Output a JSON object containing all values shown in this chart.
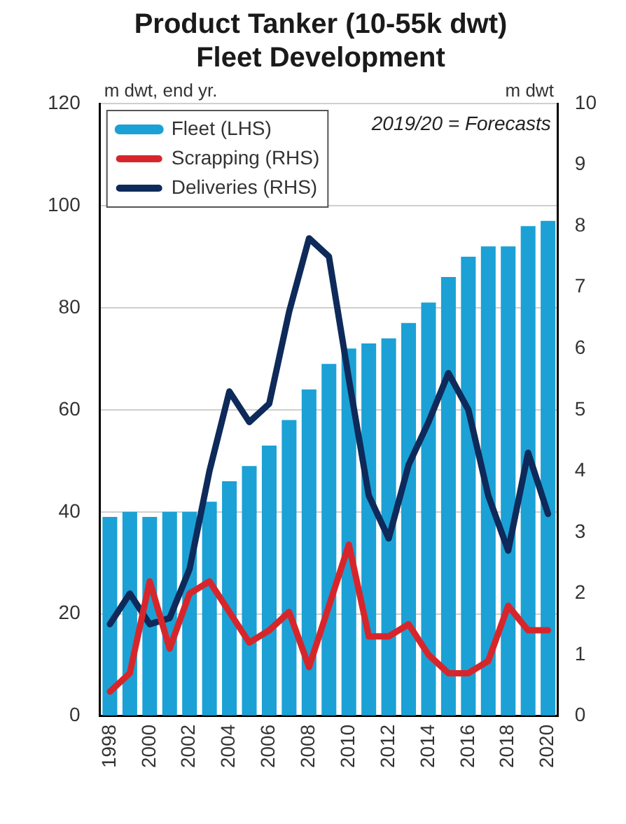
{
  "chart_data": {
    "type": "bar",
    "title": "Product Tanker (10-55k dwt)\nFleet Development",
    "ylabel": "m dwt, end yr.",
    "y2label": "m dwt",
    "annotations": [
      "2019/20 = Forecasts"
    ],
    "categories": [
      "1998",
      null,
      "2000",
      null,
      "2002",
      null,
      "2004",
      null,
      "2006",
      null,
      "2008",
      null,
      "2010",
      null,
      "2012",
      null,
      "2014",
      null,
      "2016",
      null,
      "2018",
      null,
      "2020"
    ],
    "series": [
      {
        "name": "Fleet (LHS)",
        "color": "#1ba1d5",
        "values": [
          39,
          40,
          39,
          40,
          40,
          42,
          46,
          49,
          53,
          58,
          64,
          69,
          72,
          73,
          74,
          77,
          81,
          86,
          90,
          92,
          92,
          96,
          97
        ]
      },
      {
        "name": "Scrapping (RHS)",
        "type": "line",
        "axis": "y2",
        "color": "#d7262b",
        "values": [
          0.4,
          0.7,
          2.2,
          1.1,
          2.0,
          2.2,
          1.7,
          1.2,
          1.4,
          1.7,
          0.8,
          1.8,
          2.8,
          1.3,
          1.3,
          1.5,
          1.0,
          0.7,
          0.7,
          0.9,
          1.8,
          1.4,
          1.4
        ]
      },
      {
        "name": "Deliveries (RHS)",
        "type": "line",
        "axis": "y2",
        "color": "#0e2a5a",
        "values": [
          1.5,
          2.0,
          1.5,
          1.6,
          2.4,
          4.0,
          5.3,
          4.8,
          5.1,
          6.6,
          7.8,
          7.5,
          5.5,
          3.6,
          2.9,
          4.1,
          4.8,
          5.6,
          5.0,
          3.6,
          2.7,
          4.3,
          3.3
        ]
      }
    ],
    "ylim": [
      0,
      120
    ],
    "yticks": [
      0,
      20,
      40,
      60,
      80,
      100,
      120
    ],
    "y2lim": [
      0,
      10
    ],
    "y2ticks": [
      0,
      1,
      2,
      3,
      4,
      5,
      6,
      7,
      8,
      9,
      10
    ],
    "grid": "y",
    "legend": "top left"
  }
}
